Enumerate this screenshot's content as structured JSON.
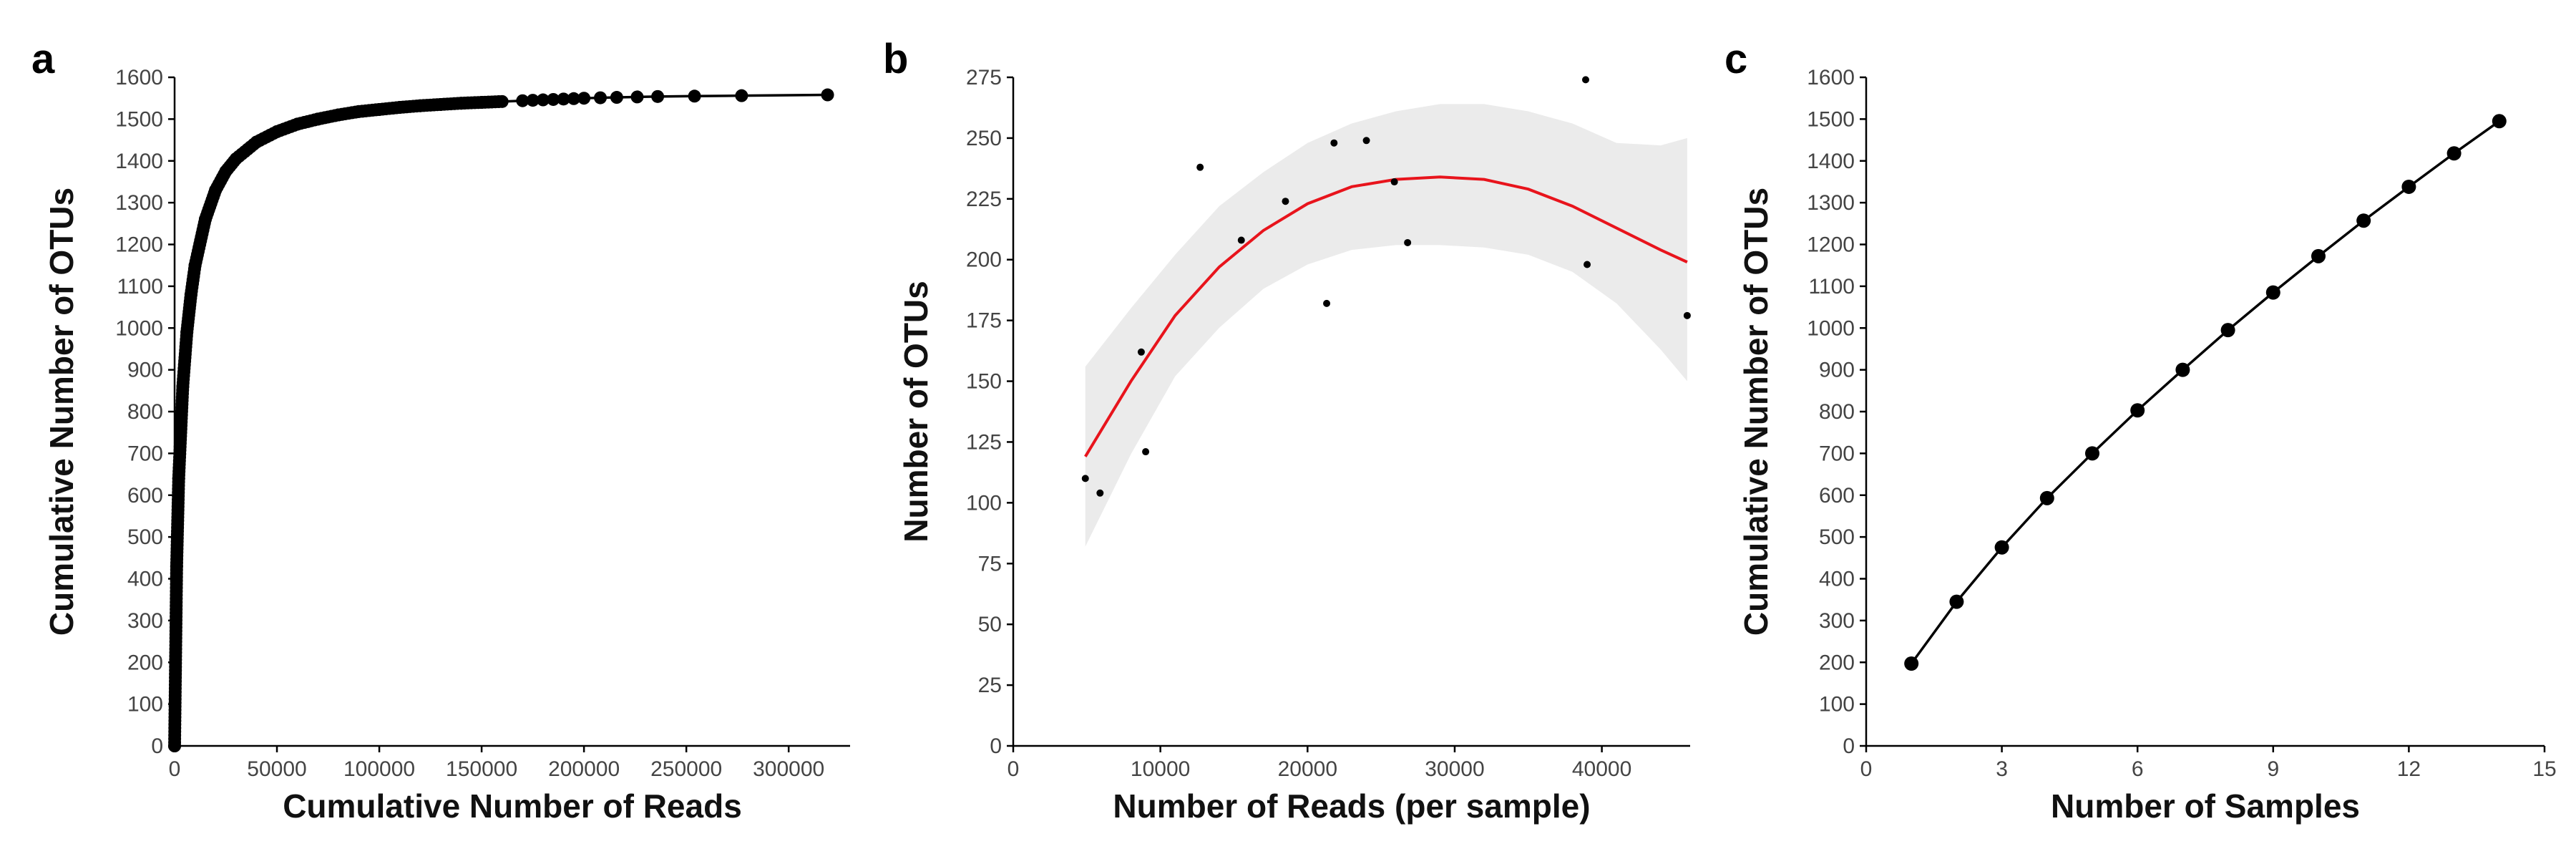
{
  "chart_data": [
    {
      "panel": "a",
      "type": "line",
      "xlabel": "Cumulative Number of Reads",
      "ylabel": "Cumulative Number of OTUs",
      "xlim": [
        0,
        330000
      ],
      "ylim": [
        0,
        1600
      ],
      "xticks": [
        0,
        50000,
        100000,
        150000,
        200000,
        250000,
        300000
      ],
      "yticks": [
        0,
        100,
        200,
        300,
        400,
        500,
        600,
        700,
        800,
        900,
        1000,
        1100,
        1200,
        1300,
        1400,
        1500,
        1600
      ],
      "grid": false,
      "markers": true,
      "series": [
        {
          "x": [
            0,
            1000,
            2000,
            4000,
            6000,
            8000,
            10000,
            15000,
            20000,
            25000,
            30000,
            40000,
            50000,
            60000,
            70000,
            80000,
            90000,
            100000,
            110000,
            120000,
            130000,
            140000,
            150000,
            160000,
            170000,
            175000,
            180000,
            185000,
            190000,
            195000,
            200000,
            208000,
            216000,
            226000,
            236000,
            254000,
            277000,
            319000
          ],
          "y": [
            0,
            430,
            640,
            860,
            990,
            1080,
            1150,
            1260,
            1330,
            1375,
            1405,
            1445,
            1470,
            1488,
            1500,
            1510,
            1518,
            1523,
            1528,
            1532,
            1535,
            1538,
            1540,
            1542,
            1544,
            1545,
            1546,
            1547,
            1548,
            1549,
            1550,
            1551,
            1552,
            1553,
            1554,
            1555,
            1556,
            1558
          ]
        }
      ]
    },
    {
      "panel": "b",
      "type": "scatter",
      "xlabel": "Number of Reads (per sample)",
      "ylabel": "Number of OTUs",
      "xlim": [
        0,
        46000
      ],
      "ylim": [
        0,
        275
      ],
      "xticks": [
        0,
        10000,
        20000,
        30000,
        40000
      ],
      "yticks": [
        0,
        25,
        50,
        75,
        100,
        125,
        150,
        175,
        200,
        225,
        250,
        275
      ],
      "grid": false,
      "points": {
        "x": [
          4900,
          5900,
          8700,
          9000,
          12700,
          15500,
          18500,
          21300,
          21800,
          24000,
          25900,
          26800,
          38900,
          39000,
          45800
        ],
        "y": [
          110,
          104,
          162,
          121,
          238,
          208,
          224,
          182,
          248,
          249,
          232,
          207,
          274,
          198,
          177
        ]
      },
      "smooth_fit": {
        "color": "#e8141c",
        "band_color": "#ebebeb",
        "x": [
          4900,
          8000,
          11000,
          14000,
          17000,
          20000,
          23000,
          26000,
          29000,
          32000,
          35000,
          38000,
          41000,
          44000,
          45800
        ],
        "y": [
          119,
          150,
          177,
          197,
          212,
          223,
          230,
          233,
          234,
          233,
          229,
          222,
          213,
          204,
          199
        ],
        "lower": [
          82,
          120,
          152,
          172,
          188,
          198,
          204,
          206,
          206,
          205,
          202,
          195,
          182,
          163,
          150
        ],
        "upper": [
          156,
          180,
          202,
          222,
          236,
          248,
          256,
          261,
          264,
          264,
          261,
          256,
          248,
          247,
          250
        ]
      }
    },
    {
      "panel": "c",
      "type": "line",
      "xlabel": "Number of Samples",
      "ylabel": "Cumulative Number of OTUs",
      "xlim": [
        0,
        15
      ],
      "ylim": [
        0,
        1600
      ],
      "xticks": [
        0,
        3,
        6,
        9,
        12,
        15
      ],
      "yticks": [
        0,
        100,
        200,
        300,
        400,
        500,
        600,
        700,
        800,
        900,
        1000,
        1100,
        1200,
        1300,
        1400,
        1500,
        1600
      ],
      "grid": false,
      "markers": true,
      "series": [
        {
          "x": [
            1,
            2,
            3,
            4,
            5,
            6,
            7,
            8,
            9,
            10,
            11,
            12,
            13,
            14
          ],
          "y": [
            197,
            345,
            475,
            593,
            700,
            803,
            900,
            995,
            1085,
            1172,
            1257,
            1338,
            1418,
            1495
          ]
        }
      ]
    }
  ]
}
